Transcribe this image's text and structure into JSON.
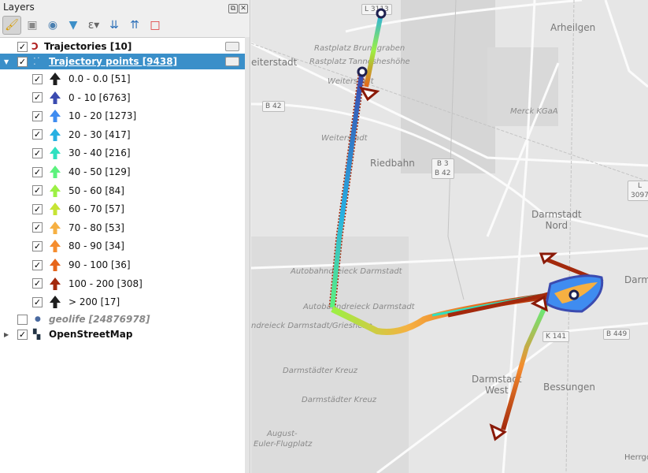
{
  "panel": {
    "title": "Layers",
    "float_icon": "⧉",
    "close_icon": "✕"
  },
  "toolbar": [
    "style-manager",
    "add-group",
    "visibility",
    "filter",
    "expression-filter",
    "expand-all",
    "collapse-all",
    "remove-layer"
  ],
  "layers": {
    "trajectories": {
      "label": "Trajectories [10]",
      "checked": true
    },
    "points": {
      "label": "Trajectory points [9438]",
      "checked": true
    },
    "classes": [
      {
        "label": "0.0 - 0.0 [51]",
        "color": "#1e1e1e"
      },
      {
        "label": "0 - 10 [6763]",
        "color": "#3b4bb0"
      },
      {
        "label": "10 - 20 [1273]",
        "color": "#3f8cf0"
      },
      {
        "label": "20 - 30 [417]",
        "color": "#27b0e2"
      },
      {
        "label": "30 - 40 [216]",
        "color": "#2fe0c0"
      },
      {
        "label": "40 - 50 [129]",
        "color": "#5cf27e"
      },
      {
        "label": "50 - 60 [84]",
        "color": "#9cf044"
      },
      {
        "label": "60 - 70 [57]",
        "color": "#c6e434"
      },
      {
        "label": "70 - 80 [53]",
        "color": "#f6b042"
      },
      {
        "label": "80 - 90 [34]",
        "color": "#f58c2e"
      },
      {
        "label": "90 - 100 [36]",
        "color": "#e6651a"
      },
      {
        "label": "100 - 200 [308]",
        "color": "#a3290c"
      },
      {
        "label": "> 200 [17]",
        "color": "#1e1e1e"
      }
    ],
    "geolife": {
      "label": "geolife [24876978]",
      "checked": false
    },
    "osm": {
      "label": "OpenStreetMap",
      "checked": true
    }
  },
  "map_labels": {
    "l3113": "L 3113",
    "arheilgen": "Arheilgen",
    "rast1": "Rastplatz Brunngraben",
    "rast2": "Rastplatz Tannesheshöhe",
    "weiterstadt": "eiterstadt",
    "weit1": "Weiterstadt",
    "weit2": "Weiterstadt",
    "b42": "B 42",
    "merck": "Merck KGaA",
    "riedbahn": "Riedbahn",
    "b3": "B 3",
    "b42b": "B 42",
    "l3097": "L 3097",
    "dnord1": "Darmstadt",
    "dnord2": "Nord",
    "adreieck": "Autobahndreieck Darmstadt",
    "adreieck2": "Autobahndreieck Darmstadt",
    "griesheim": "ndreieck Darmstadt/Griesheim",
    "darm": "Darm",
    "k141": "K 141",
    "b449": "B 449",
    "kreuz1": "Darmstädter Kreuz",
    "kreuz2": "Darmstädter Kreuz",
    "dwest1": "Darmstadt",
    "dwest2": "West",
    "bessungen": "Bessungen",
    "august": "August-",
    "euler": "Euler-Flugplatz",
    "herrgo": "Herrgo"
  }
}
